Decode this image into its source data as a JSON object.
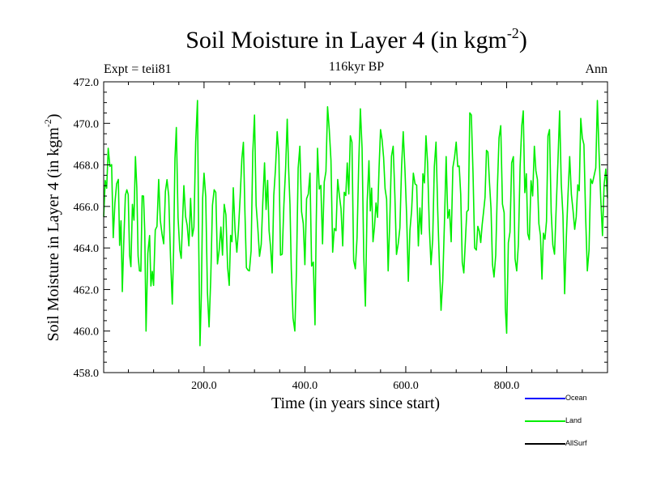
{
  "header": {
    "title": "Soil Moisture in Layer 4 (in kgm",
    "title_sup": "-2",
    "title_tail": ")",
    "subtitle": "116kyr BP",
    "expt": "Expt = teii81",
    "period": "Ann"
  },
  "axes": {
    "ylabel": "Soil Moisture in Layer 4 (in kgm",
    "ylabel_sup": "-2",
    "ylabel_tail": ")",
    "xlabel": "Time (in years since start)"
  },
  "legend": {
    "items": [
      {
        "label": "Ocean",
        "color": "#0000ff"
      },
      {
        "label": "Land",
        "color": "#00ee00"
      },
      {
        "label": "AllSurf",
        "color": "#000000"
      }
    ]
  },
  "chart_data": {
    "type": "line",
    "xlim": [
      1,
      1000
    ],
    "ylim": [
      458.0,
      472.0
    ],
    "x_ticks": [
      "200.0",
      "400.0",
      "600.0",
      "800.0"
    ],
    "x_tick_values": [
      200,
      400,
      600,
      800
    ],
    "y_ticks": [
      "458.0",
      "460.0",
      "462.0",
      "464.0",
      "466.0",
      "468.0",
      "470.0",
      "472.0"
    ],
    "y_tick_values": [
      458,
      460,
      462,
      464,
      466,
      468,
      470,
      472
    ],
    "grid": false,
    "series": [
      {
        "name": "Land",
        "color": "#00ee00",
        "x": [
          1,
          10,
          20,
          30,
          38,
          47,
          55,
          64,
          72,
          80,
          85,
          92,
          100,
          110,
          120,
          130,
          137,
          145,
          152,
          160,
          170,
          180,
          187,
          192,
          200,
          210,
          220,
          230,
          240,
          250,
          258,
          265,
          275,
          290,
          300,
          310,
          320,
          335,
          345,
          355,
          365,
          373,
          380,
          390,
          400,
          410,
          420,
          425,
          435,
          445,
          455,
          465,
          475,
          490,
          500,
          510,
          520,
          527,
          535,
          550,
          565,
          575,
          585,
          595,
          605,
          615,
          625,
          640,
          650,
          660,
          670,
          680,
          690,
          700,
          715,
          730,
          740,
          760,
          775,
          785,
          795,
          800,
          810,
          820,
          830,
          845,
          855,
          870,
          885,
          895,
          905,
          915,
          925,
          935,
          950,
          960,
          970,
          980,
          990,
          1000
        ],
        "y": [
          465.5,
          468.8,
          464.5,
          467.3,
          461.9,
          466.8,
          463.1,
          468.4,
          462.9,
          466.5,
          460.0,
          464.6,
          462.2,
          467.3,
          464.2,
          466.5,
          461.3,
          469.8,
          463.9,
          467.0,
          464.1,
          465.0,
          471.1,
          459.3,
          467.6,
          460.2,
          466.8,
          463.9,
          466.1,
          462.2,
          466.9,
          463.8,
          468.3,
          462.9,
          470.4,
          463.6,
          468.1,
          462.8,
          469.6,
          463.7,
          470.2,
          463.0,
          460.0,
          468.9,
          463.2,
          467.6,
          460.3,
          468.8,
          464.2,
          470.8,
          463.8,
          467.3,
          464.1,
          469.4,
          463.0,
          470.7,
          461.2,
          468.2,
          464.3,
          469.7,
          462.9,
          468.9,
          464.2,
          469.6,
          462.4,
          467.6,
          464.1,
          469.4,
          463.2,
          469.1,
          461.0,
          468.4,
          464.3,
          469.1,
          462.8,
          470.4,
          463.9,
          468.7,
          462.6,
          469.3,
          465.7,
          459.9,
          468.1,
          462.9,
          469.9,
          464.4,
          468.9,
          462.5,
          469.7,
          463.7,
          470.6,
          461.8,
          468.4,
          464.9,
          469.3,
          462.9,
          467.1,
          471.1,
          464.6,
          466.4
        ]
      }
    ]
  }
}
